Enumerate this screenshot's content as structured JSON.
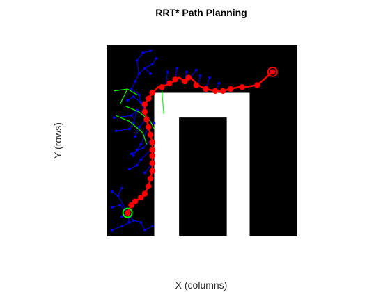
{
  "chart_data": {
    "type": "scatter",
    "title": "RRT* Path Planning",
    "xlabel": "X (columns)",
    "ylabel": "Y (rows)",
    "xlim": [
      0,
      100
    ],
    "ylim": [
      0,
      100
    ],
    "y_direction": "reverse",
    "grid": false,
    "colors": {
      "free_space": "#ffffff",
      "obstacle": "#000000",
      "tree": "#0000ff",
      "rewired": "#00ff00",
      "path": "#ff0000",
      "start_marker": "#00ff00",
      "goal_marker": "#ff0000"
    },
    "free_space_regions": [
      {
        "x0": 25,
        "x1": 75,
        "y0": 25,
        "y1": 100
      },
      {
        "x0": 25,
        "x1": 75,
        "y0": 25,
        "y1": 38
      },
      {
        "x0": 63,
        "x1": 75,
        "y0": 25,
        "y1": 76
      }
    ],
    "obstacle_regions": [
      {
        "x0": 38,
        "x1": 63,
        "y0": 38,
        "y1": 100
      }
    ],
    "path": {
      "x": [
        11,
        13,
        15,
        18,
        20,
        22,
        23,
        24,
        24,
        24,
        24,
        24,
        23,
        22,
        21,
        20,
        20,
        22,
        24,
        27,
        31,
        34,
        36,
        38,
        41,
        44,
        48,
        52,
        57,
        61,
        65,
        69,
        72,
        79,
        87
      ],
      "y": [
        88,
        84,
        82,
        80,
        78,
        74,
        70,
        66,
        62,
        58,
        55,
        51,
        47,
        43,
        39,
        35,
        31,
        28,
        25,
        22,
        21,
        20,
        18,
        17,
        19,
        17,
        21,
        23,
        24,
        24,
        23,
        22,
        22,
        21,
        14
      ]
    },
    "path_nodes": {
      "x": [
        11,
        13,
        15,
        18,
        20,
        22,
        23,
        24,
        24,
        24,
        24,
        24,
        23,
        22,
        21,
        20,
        20,
        22,
        24,
        29,
        33,
        36,
        41,
        43,
        47,
        52,
        57,
        61,
        65,
        71,
        79
      ],
      "y": [
        88,
        84,
        82,
        80,
        78,
        74,
        70,
        66,
        62,
        58,
        55,
        51,
        47,
        43,
        39,
        35,
        31,
        28,
        25,
        22,
        20,
        18,
        19,
        17,
        21,
        23,
        24,
        24,
        23,
        22,
        21
      ]
    },
    "tree_edges": [
      [
        [
          20,
          35
        ],
        [
          18,
          30
        ]
      ],
      [
        [
          18,
          30
        ],
        [
          14,
          27
        ]
      ],
      [
        [
          14,
          27
        ],
        [
          11,
          29
        ]
      ],
      [
        [
          18,
          30
        ],
        [
          17,
          26
        ]
      ],
      [
        [
          17,
          26
        ],
        [
          13,
          23
        ]
      ],
      [
        [
          13,
          23
        ],
        [
          15,
          19
        ]
      ],
      [
        [
          15,
          19
        ],
        [
          17,
          15
        ]
      ],
      [
        [
          17,
          15
        ],
        [
          20,
          12
        ]
      ],
      [
        [
          20,
          12
        ],
        [
          23,
          15
        ]
      ],
      [
        [
          17,
          15
        ],
        [
          16,
          8
        ]
      ],
      [
        [
          16,
          8
        ],
        [
          19,
          4
        ]
      ],
      [
        [
          19,
          4
        ],
        [
          23,
          3
        ]
      ],
      [
        [
          20,
          12
        ],
        [
          24,
          10
        ]
      ],
      [
        [
          24,
          10
        ],
        [
          26,
          7
        ]
      ],
      [
        [
          31,
          21
        ],
        [
          32,
          14
        ]
      ],
      [
        [
          36,
          18
        ],
        [
          37,
          12
        ]
      ],
      [
        [
          41,
          19
        ],
        [
          42,
          14
        ]
      ],
      [
        [
          44,
          17
        ],
        [
          47,
          13
        ]
      ],
      [
        [
          48,
          21
        ],
        [
          49,
          16
        ]
      ],
      [
        [
          52,
          23
        ],
        [
          54,
          17
        ]
      ],
      [
        [
          57,
          24
        ],
        [
          59,
          20
        ]
      ],
      [
        [
          20,
          35
        ],
        [
          16,
          34
        ]
      ],
      [
        [
          16,
          34
        ],
        [
          13,
          37
        ]
      ],
      [
        [
          13,
          37
        ],
        [
          4,
          38
        ]
      ],
      [
        [
          16,
          34
        ],
        [
          14,
          41
        ]
      ],
      [
        [
          14,
          41
        ],
        [
          12,
          44
        ]
      ],
      [
        [
          12,
          44
        ],
        [
          5,
          45
        ]
      ],
      [
        [
          20,
          40
        ],
        [
          17,
          43
        ]
      ],
      [
        [
          17,
          43
        ],
        [
          15,
          48
        ]
      ],
      [
        [
          21,
          39
        ],
        [
          25,
          41
        ]
      ],
      [
        [
          22,
          43
        ],
        [
          18,
          52
        ]
      ],
      [
        [
          18,
          52
        ],
        [
          16,
          55
        ]
      ],
      [
        [
          16,
          55
        ],
        [
          14,
          58
        ]
      ],
      [
        [
          23,
          50
        ],
        [
          19,
          54
        ]
      ],
      [
        [
          19,
          54
        ],
        [
          13,
          57
        ]
      ],
      [
        [
          23,
          55
        ],
        [
          18,
          60
        ]
      ],
      [
        [
          18,
          60
        ],
        [
          16,
          63
        ]
      ],
      [
        [
          16,
          63
        ],
        [
          12,
          65
        ]
      ],
      [
        [
          24,
          62
        ],
        [
          20,
          67
        ]
      ],
      [
        [
          11,
          88
        ],
        [
          7,
          84
        ]
      ],
      [
        [
          7,
          84
        ],
        [
          3,
          85
        ]
      ],
      [
        [
          11,
          88
        ],
        [
          8,
          90
        ]
      ],
      [
        [
          11,
          88
        ],
        [
          6,
          79
        ]
      ],
      [
        [
          6,
          79
        ],
        [
          3,
          77
        ]
      ],
      [
        [
          6,
          79
        ],
        [
          8,
          75
        ]
      ],
      [
        [
          11,
          88
        ],
        [
          12,
          93
        ]
      ],
      [
        [
          12,
          93
        ],
        [
          8,
          95
        ]
      ],
      [
        [
          8,
          95
        ],
        [
          3,
          97
        ]
      ],
      [
        [
          11,
          88
        ],
        [
          14,
          92
        ]
      ],
      [
        [
          14,
          92
        ],
        [
          18,
          93
        ]
      ],
      [
        [
          18,
          93
        ],
        [
          20,
          97
        ]
      ],
      [
        [
          20,
          97
        ],
        [
          24,
          95
        ]
      ]
    ],
    "rewired_edges": [
      [
        [
          4,
          24
        ],
        [
          11,
          23
        ]
      ],
      [
        [
          11,
          23
        ],
        [
          16,
          26
        ]
      ],
      [
        [
          11,
          23
        ],
        [
          7,
          31
        ]
      ],
      [
        [
          10,
          32
        ],
        [
          17,
          35
        ]
      ],
      [
        [
          17,
          35
        ],
        [
          23,
          40
        ]
      ],
      [
        [
          23,
          40
        ],
        [
          25,
          44
        ]
      ],
      [
        [
          5,
          37
        ],
        [
          12,
          40
        ]
      ],
      [
        [
          12,
          40
        ],
        [
          19,
          46
        ]
      ],
      [
        [
          19,
          46
        ],
        [
          21,
          52
        ]
      ],
      [
        [
          29,
          24
        ],
        [
          30,
          36
        ]
      ]
    ],
    "start": {
      "x": 11,
      "y": 88
    },
    "goal": {
      "x": 87,
      "y": 14
    }
  }
}
